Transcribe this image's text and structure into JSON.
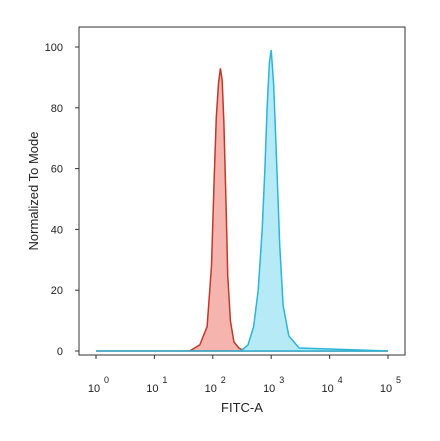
{
  "chart_data": {
    "type": "area",
    "title": "",
    "xlabel": "FITC-A",
    "ylabel": "Normalized To Mode",
    "x_scale": "log",
    "xlim": [
      1,
      100000
    ],
    "ylim": [
      0,
      100
    ],
    "x_ticks": [
      {
        "base": "10",
        "exp": "0",
        "value": 1
      },
      {
        "base": "10",
        "exp": "1",
        "value": 10
      },
      {
        "base": "10",
        "exp": "2",
        "value": 100
      },
      {
        "base": "10",
        "exp": "3",
        "value": 1000
      },
      {
        "base": "10",
        "exp": "4",
        "value": 10000
      },
      {
        "base": "10",
        "exp": "5",
        "value": 100000
      }
    ],
    "y_ticks": [
      {
        "label": "0",
        "value": 0
      },
      {
        "label": "20",
        "value": 20
      },
      {
        "label": "40",
        "value": 40
      },
      {
        "label": "60",
        "value": 60
      },
      {
        "label": "80",
        "value": 80
      },
      {
        "label": "100",
        "value": 100
      }
    ],
    "grid": false,
    "series": [
      {
        "fill": "#f4a7a0",
        "stroke": "#c0392b",
        "x": [
          1,
          40,
          60,
          80,
          95,
          105,
          115,
          125,
          135,
          145,
          155,
          170,
          180,
          200,
          230,
          280,
          350,
          100000
        ],
        "y": [
          0,
          0,
          2,
          8,
          28,
          55,
          77,
          88,
          93,
          89,
          75,
          45,
          25,
          10,
          3,
          1,
          0,
          0
        ]
      },
      {
        "fill": "#a8e6f5",
        "stroke": "#2bb5d8",
        "x": [
          1,
          300,
          400,
          500,
          600,
          700,
          780,
          850,
          930,
          1000,
          1100,
          1250,
          1400,
          1600,
          2000,
          3000,
          100000
        ],
        "y": [
          0,
          0,
          2,
          8,
          20,
          40,
          60,
          80,
          95,
          99,
          88,
          60,
          35,
          15,
          5,
          1,
          0
        ]
      }
    ]
  }
}
